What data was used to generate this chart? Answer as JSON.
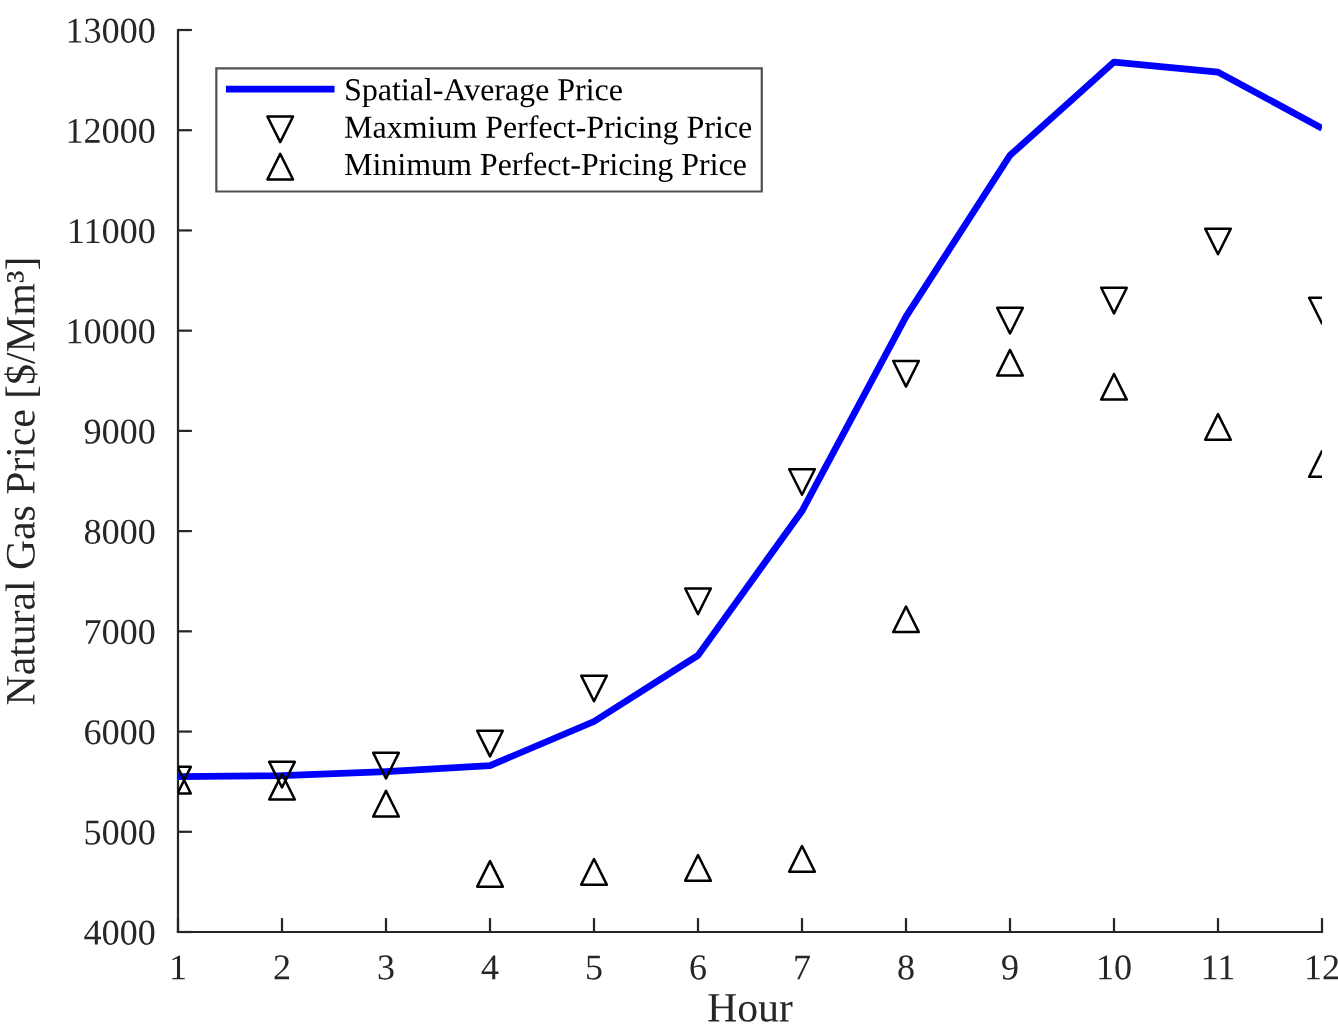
{
  "chart_data": {
    "type": "line",
    "xlabel": "Hour",
    "ylabel": "Natural Gas Price [$/Mm³]",
    "x": [
      1,
      2,
      3,
      4,
      5,
      6,
      7,
      8,
      9,
      10,
      11,
      12
    ],
    "series": [
      {
        "name": "Spatial-Average Price",
        "color": "#0000ff",
        "marker": "none",
        "line_style": "solid",
        "values": [
          5550,
          5560,
          5600,
          5660,
          6100,
          6760,
          8200,
          10140,
          11750,
          12680,
          12580,
          12020
        ]
      },
      {
        "name": "Maxmium Perfect-Pricing Price",
        "type": "scatter",
        "color": "#000000",
        "marker": "triangle_down",
        "values": [
          5520,
          5570,
          5660,
          5880,
          6430,
          7300,
          8490,
          9570,
          10100,
          10300,
          10890,
          10200
        ]
      },
      {
        "name": "Minimum Perfect-Pricing Price",
        "type": "scatter",
        "color": "#000000",
        "marker": "triangle",
        "values": [
          5510,
          5450,
          5280,
          4580,
          4600,
          4640,
          4730,
          7120,
          9680,
          9440,
          9040,
          8670
        ]
      }
    ],
    "xlim": [
      1,
      12
    ],
    "xticks": [
      1,
      2,
      3,
      4,
      5,
      6,
      7,
      8,
      9,
      10,
      11,
      12
    ],
    "ylim": [
      4000,
      13000
    ],
    "yticks": [
      4000,
      5000,
      6000,
      7000,
      8000,
      9000,
      10000,
      11000,
      12000,
      13000
    ],
    "legend": "top left"
  }
}
